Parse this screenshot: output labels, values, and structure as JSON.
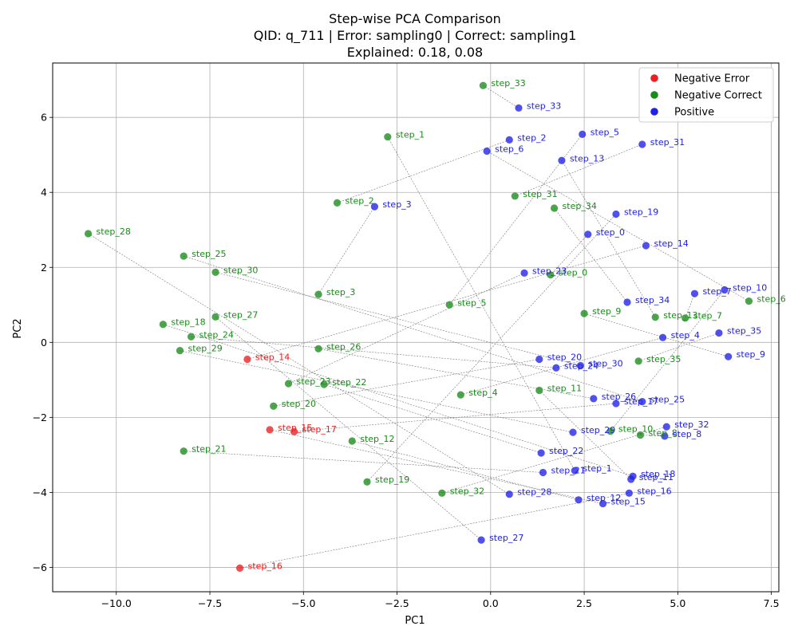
{
  "chart_data": {
    "type": "scatter",
    "title": [
      "Step-wise PCA Comparison",
      "QID: q_711 | Error: sampling0 | Correct: sampling1",
      "Explained: 0.18, 0.08"
    ],
    "xlabel": "PC1",
    "ylabel": "PC2",
    "xlim": [
      -11.7,
      7.7
    ],
    "ylim": [
      -6.65,
      7.45
    ],
    "xticks": [
      -10.0,
      -7.5,
      -5.0,
      -2.5,
      0.0,
      2.5,
      5.0,
      7.5
    ],
    "xtick_labels": [
      "−10.0",
      "−7.5",
      "−5.0",
      "−2.5",
      "0.0",
      "2.5",
      "5.0",
      "7.5"
    ],
    "yticks": [
      -6,
      -4,
      -2,
      0,
      2,
      4,
      6
    ],
    "ytick_labels": [
      "−6",
      "−4",
      "−2",
      "0",
      "2",
      "4",
      "6"
    ],
    "grid": true,
    "legend_position": "top-right",
    "colors": {
      "error": "#e82020",
      "correct": "#1a8a1a",
      "positive": "#2020e8"
    },
    "series": [
      {
        "name": "Negative Error",
        "color": "#e82020",
        "points": [
          {
            "label": "step_14",
            "x": -6.5,
            "y": -0.45
          },
          {
            "label": "step_15",
            "x": -5.9,
            "y": -2.33
          },
          {
            "label": "step_17",
            "x": -5.25,
            "y": -2.38
          },
          {
            "label": "step_16",
            "x": -6.7,
            "y": -6.02
          }
        ]
      },
      {
        "name": "Negative Correct",
        "color": "#1a8a1a",
        "points": [
          {
            "label": "step_0",
            "x": 1.6,
            "y": 1.8
          },
          {
            "label": "step_1",
            "x": -2.75,
            "y": 5.48
          },
          {
            "label": "step_2",
            "x": -4.1,
            "y": 3.72
          },
          {
            "label": "step_3",
            "x": -4.6,
            "y": 1.28
          },
          {
            "label": "step_4",
            "x": -0.8,
            "y": -1.4
          },
          {
            "label": "step_5",
            "x": -1.1,
            "y": 1.0
          },
          {
            "label": "step_6",
            "x": 6.9,
            "y": 1.1
          },
          {
            "label": "step_7",
            "x": 5.2,
            "y": 0.65
          },
          {
            "label": "step_8",
            "x": 4.0,
            "y": -2.47
          },
          {
            "label": "step_9",
            "x": 2.5,
            "y": 0.77
          },
          {
            "label": "step_10",
            "x": 3.2,
            "y": -2.37
          },
          {
            "label": "step_11",
            "x": 1.3,
            "y": -1.28
          },
          {
            "label": "step_12",
            "x": -3.7,
            "y": -2.63
          },
          {
            "label": "step_13",
            "x": 4.4,
            "y": 0.67
          },
          {
            "label": "step_18",
            "x": -8.75,
            "y": 0.48
          },
          {
            "label": "step_19",
            "x": -3.3,
            "y": -3.72
          },
          {
            "label": "step_20",
            "x": -5.8,
            "y": -1.7
          },
          {
            "label": "step_21",
            "x": -8.2,
            "y": -2.9
          },
          {
            "label": "step_22",
            "x": -4.45,
            "y": -1.12
          },
          {
            "label": "step_23",
            "x": -5.4,
            "y": -1.1
          },
          {
            "label": "step_24",
            "x": -8.0,
            "y": 0.15
          },
          {
            "label": "step_25",
            "x": -8.2,
            "y": 2.3
          },
          {
            "label": "step_26",
            "x": -4.6,
            "y": -0.17
          },
          {
            "label": "step_27",
            "x": -7.35,
            "y": 0.68
          },
          {
            "label": "step_28",
            "x": -10.75,
            "y": 2.9
          },
          {
            "label": "step_29",
            "x": -8.3,
            "y": -0.22
          },
          {
            "label": "step_30",
            "x": -7.35,
            "y": 1.87
          },
          {
            "label": "step_31",
            "x": 0.65,
            "y": 3.9
          },
          {
            "label": "step_32",
            "x": -1.3,
            "y": -4.02
          },
          {
            "label": "step_33",
            "x": -0.2,
            "y": 6.85
          },
          {
            "label": "step_34",
            "x": 1.7,
            "y": 3.58
          },
          {
            "label": "step_35",
            "x": 3.95,
            "y": -0.5
          }
        ]
      },
      {
        "name": "Positive",
        "color": "#2020e8",
        "points": [
          {
            "label": "step_0",
            "x": 2.6,
            "y": 2.88
          },
          {
            "label": "step_1",
            "x": 2.25,
            "y": -3.42
          },
          {
            "label": "step_2",
            "x": 0.5,
            "y": 5.4
          },
          {
            "label": "step_3",
            "x": -3.1,
            "y": 3.62
          },
          {
            "label": "step_4",
            "x": 4.6,
            "y": 0.13
          },
          {
            "label": "step_5",
            "x": 2.45,
            "y": 5.55
          },
          {
            "label": "step_6",
            "x": -0.1,
            "y": 5.1
          },
          {
            "label": "step_7",
            "x": 5.45,
            "y": 1.3
          },
          {
            "label": "step_8",
            "x": 4.65,
            "y": -2.5
          },
          {
            "label": "step_9",
            "x": 6.35,
            "y": -0.38
          },
          {
            "label": "step_10",
            "x": 6.25,
            "y": 1.4
          },
          {
            "label": "step_11",
            "x": 3.75,
            "y": -3.65
          },
          {
            "label": "step_12",
            "x": 2.35,
            "y": -4.2
          },
          {
            "label": "step_13",
            "x": 1.9,
            "y": 4.85
          },
          {
            "label": "step_14",
            "x": 4.15,
            "y": 2.58
          },
          {
            "label": "step_15",
            "x": 3.0,
            "y": -4.3
          },
          {
            "label": "step_16",
            "x": 3.7,
            "y": -4.02
          },
          {
            "label": "step_17",
            "x": 3.35,
            "y": -1.63
          },
          {
            "label": "step_18",
            "x": 3.8,
            "y": -3.57
          },
          {
            "label": "step_19",
            "x": 3.35,
            "y": 3.42
          },
          {
            "label": "step_20",
            "x": 1.3,
            "y": -0.45
          },
          {
            "label": "step_21",
            "x": 1.4,
            "y": -3.47
          },
          {
            "label": "step_22",
            "x": 1.35,
            "y": -2.95
          },
          {
            "label": "step_23",
            "x": 0.9,
            "y": 1.85
          },
          {
            "label": "step_24",
            "x": 1.75,
            "y": -0.68
          },
          {
            "label": "step_25",
            "x": 4.05,
            "y": -1.58
          },
          {
            "label": "step_26",
            "x": 2.75,
            "y": -1.5
          },
          {
            "label": "step_27",
            "x": -0.25,
            "y": -5.27
          },
          {
            "label": "step_28",
            "x": 0.5,
            "y": -4.05
          },
          {
            "label": "step_29",
            "x": 2.2,
            "y": -2.4
          },
          {
            "label": "step_30",
            "x": 2.4,
            "y": -0.62
          },
          {
            "label": "step_31",
            "x": 4.05,
            "y": 5.28
          },
          {
            "label": "step_32",
            "x": 4.7,
            "y": -2.25
          },
          {
            "label": "step_33",
            "x": 0.75,
            "y": 6.25
          },
          {
            "label": "step_34",
            "x": 3.65,
            "y": 1.07
          },
          {
            "label": "step_35",
            "x": 6.1,
            "y": 0.25
          }
        ]
      }
    ]
  }
}
